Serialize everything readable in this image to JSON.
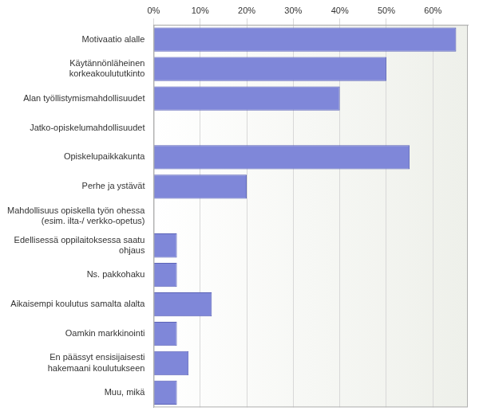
{
  "chart_data": {
    "type": "bar",
    "orientation": "horizontal",
    "categories": [
      "Motivaatio alalle",
      "Käytännönläheinen korkeakoulututkinto",
      "Alan työllistymismahdollisuudet",
      "Jatko-opiskelumahdollisuudet",
      "Opiskelupaikkakunta",
      "Perhe ja ystävät",
      "Mahdollisuus opiskella työn ohessa (esim. ilta-/ verkko-opetus)",
      "Edellisessä oppilaitoksessa saatu ohjaus",
      "Ns. pakkohaku",
      "Aikaisempi koulutus samalta alalta",
      "Oamkin markkinointi",
      "En päässyt ensisijaisesti hakemaani koulutukseen",
      "Muu, mikä"
    ],
    "values": [
      65,
      50,
      40,
      0,
      55,
      20,
      0,
      5,
      5,
      12.5,
      5,
      7.5,
      5
    ],
    "color": "#7f87d9",
    "xlim": [
      0,
      67.5
    ],
    "xticks": [
      {
        "value": 0,
        "label": "0%"
      },
      {
        "value": 10,
        "label": "10%"
      },
      {
        "value": 20,
        "label": "20%"
      },
      {
        "value": 30,
        "label": "30%"
      },
      {
        "value": 40,
        "label": "40%"
      },
      {
        "value": 50,
        "label": "50%"
      },
      {
        "value": 60,
        "label": "60%"
      }
    ],
    "grid": true
  }
}
